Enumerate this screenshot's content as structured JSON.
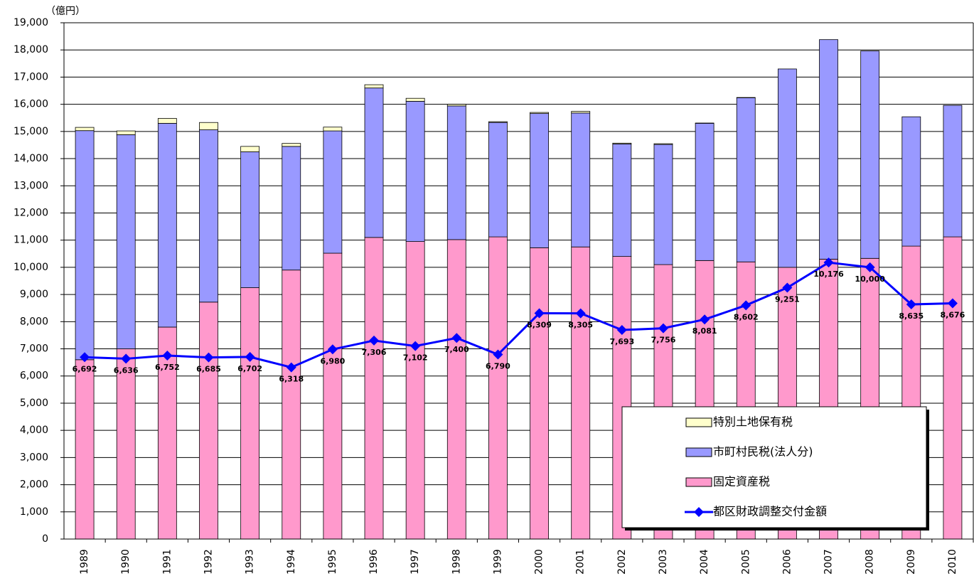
{
  "chart_data": {
    "type": "bar",
    "stacked": true,
    "y_unit_label": "（億円）",
    "categories": [
      "1989",
      "1990",
      "1991",
      "1992",
      "1993",
      "1994",
      "1995",
      "1996",
      "1997",
      "1998",
      "1999",
      "2000",
      "2001",
      "2002",
      "2003",
      "2004",
      "2005",
      "2006",
      "2007",
      "2008",
      "2009",
      "2010"
    ],
    "series": [
      {
        "name": "固定資産税",
        "type": "bar",
        "color": "#ff99cc",
        "values": [
          6600,
          7000,
          7800,
          8720,
          9250,
          9900,
          10520,
          11100,
          10950,
          11020,
          11120,
          10720,
          10750,
          10400,
          10100,
          10250,
          10200,
          10000,
          10300,
          10330,
          10780,
          11120
        ]
      },
      {
        "name": "市町村民税(法人分)",
        "type": "bar",
        "color": "#9999ff",
        "values": [
          8430,
          7880,
          7500,
          6340,
          5000,
          4550,
          4500,
          5500,
          5160,
          4920,
          4210,
          4940,
          4930,
          4140,
          4420,
          5050,
          6040,
          7300,
          8080,
          7630,
          4760,
          4840
        ]
      },
      {
        "name": "特別土地保有税",
        "type": "bar",
        "color": "#ffffcc",
        "values": [
          120,
          140,
          180,
          270,
          200,
          110,
          140,
          120,
          110,
          60,
          30,
          40,
          60,
          30,
          30,
          10,
          10,
          0,
          0,
          0,
          0,
          0
        ]
      },
      {
        "name": "都区財政調整交付金額",
        "type": "line",
        "color": "#0000ff",
        "values": [
          6692,
          6636,
          6752,
          6685,
          6702,
          6318,
          6980,
          7306,
          7102,
          7400,
          6790,
          8309,
          8305,
          7693,
          7756,
          8081,
          8602,
          9251,
          10176,
          10000,
          8635,
          8676
        ],
        "value_labels": [
          "6,692",
          "6,636",
          "6,752",
          "6,685",
          "6,702",
          "6,318",
          "6,980",
          "7,306",
          "7,102",
          "7,400",
          "6,790",
          "8,309",
          "8,305",
          "7,693",
          "7,756",
          "8,081",
          "8,602",
          "9,251",
          "10,176",
          "10,000",
          "8,635",
          "8,676"
        ]
      }
    ],
    "legend_order": [
      2,
      1,
      0,
      3
    ],
    "legend_position": "lower right",
    "ylim": [
      0,
      19000
    ],
    "yticks": [
      0,
      {
        "value": 1000,
        "label": "1,000"
      },
      {
        "value": 2000,
        "label": "2,000"
      },
      {
        "value": 3000,
        "label": "3,000"
      },
      {
        "value": 4000,
        "label": "4,000"
      },
      {
        "value": 5000,
        "label": "5,000"
      },
      {
        "value": 6000,
        "label": "6,000"
      },
      {
        "value": 7000,
        "label": "7,000"
      },
      {
        "value": 8000,
        "label": "8,000"
      },
      {
        "value": 9000,
        "label": "9,000"
      },
      {
        "value": 10000,
        "label": "10,000"
      },
      {
        "value": 11000,
        "label": "11,000"
      },
      {
        "value": 12000,
        "label": "12,000"
      },
      {
        "value": 13000,
        "label": "13,000"
      },
      {
        "value": 14000,
        "label": "14,000"
      },
      {
        "value": 15000,
        "label": "15,000"
      },
      {
        "value": 16000,
        "label": "16,000"
      },
      {
        "value": 17000,
        "label": "17,000"
      },
      {
        "value": 18000,
        "label": "18,000"
      },
      {
        "value": 19000,
        "label": "19,000"
      }
    ],
    "grid": true
  }
}
